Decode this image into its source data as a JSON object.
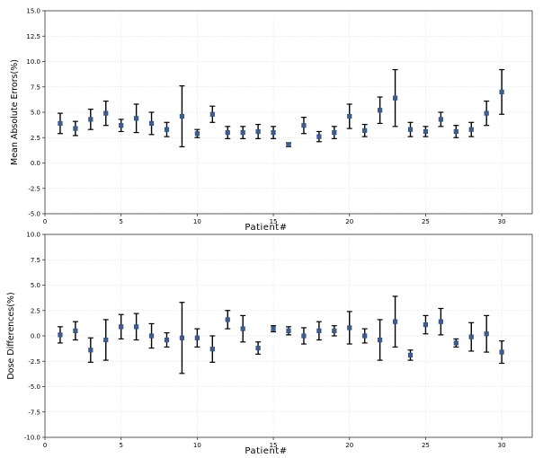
{
  "chart_data": [
    {
      "type": "scatter",
      "subtype": "errorbar",
      "xlabel": "Patient#",
      "ylabel": "Mean Absolute Errors(%)",
      "xlim": [
        0,
        32
      ],
      "ylim": [
        -5.0,
        15.0
      ],
      "xticks": [
        0,
        5,
        10,
        15,
        20,
        25,
        30
      ],
      "yticks": [
        "-5.0",
        "-2.5",
        "0.0",
        "2.5",
        "5.0",
        "7.5",
        "10.0",
        "12.5",
        "15.0"
      ],
      "grid": true,
      "marker_color": "#3a5f94",
      "errorbar_color": "#000000",
      "x": [
        1,
        2,
        3,
        4,
        5,
        6,
        7,
        8,
        9,
        10,
        11,
        12,
        13,
        14,
        15,
        16,
        17,
        18,
        19,
        20,
        21,
        22,
        23,
        24,
        25,
        26,
        27,
        28,
        29,
        30
      ],
      "y": [
        3.9,
        3.4,
        4.3,
        4.9,
        3.7,
        4.4,
        3.9,
        3.3,
        4.6,
        2.9,
        4.8,
        3.0,
        3.0,
        3.1,
        3.0,
        1.8,
        3.7,
        2.6,
        3.0,
        4.6,
        3.2,
        5.2,
        6.4,
        3.3,
        3.1,
        4.3,
        3.1,
        3.3,
        4.9,
        7.0
      ],
      "yerr": [
        1.0,
        0.7,
        1.0,
        1.2,
        0.6,
        1.4,
        1.1,
        0.7,
        3.0,
        0.4,
        0.8,
        0.6,
        0.6,
        0.7,
        0.6,
        0.2,
        0.8,
        0.5,
        0.6,
        1.2,
        0.6,
        1.3,
        2.8,
        0.7,
        0.5,
        0.7,
        0.6,
        0.7,
        1.2,
        2.2
      ]
    },
    {
      "type": "scatter",
      "subtype": "errorbar",
      "xlabel": "Patient#",
      "ylabel": "Dose Differences(%)",
      "xlim": [
        0,
        32
      ],
      "ylim": [
        -10.0,
        10.0
      ],
      "xticks": [
        0,
        5,
        10,
        15,
        20,
        25,
        30
      ],
      "yticks": [
        "-10.0",
        "-7.5",
        "-5.0",
        "-2.5",
        "0.0",
        "2.5",
        "5.0",
        "7.5",
        "10.0"
      ],
      "grid": true,
      "marker_color": "#3a5f94",
      "errorbar_color": "#000000",
      "x": [
        1,
        2,
        3,
        4,
        5,
        6,
        7,
        8,
        9,
        10,
        11,
        12,
        13,
        14,
        15,
        16,
        17,
        18,
        19,
        20,
        21,
        22,
        23,
        24,
        25,
        26,
        27,
        28,
        29,
        30
      ],
      "y": [
        0.1,
        0.5,
        -1.4,
        -0.4,
        0.9,
        0.9,
        0.0,
        -0.4,
        -0.2,
        -0.2,
        -1.3,
        1.6,
        0.7,
        -1.2,
        0.7,
        0.5,
        0.0,
        0.5,
        0.5,
        0.8,
        0.0,
        -0.4,
        1.4,
        -1.9,
        1.1,
        1.4,
        -0.7,
        -0.1,
        0.2,
        -1.6
      ],
      "yerr": [
        0.8,
        0.9,
        1.2,
        2.0,
        1.2,
        1.3,
        1.2,
        0.7,
        3.5,
        0.9,
        1.3,
        0.9,
        1.3,
        0.6,
        0.3,
        0.4,
        0.8,
        0.9,
        0.5,
        1.6,
        0.7,
        2.0,
        2.5,
        0.5,
        0.9,
        1.3,
        0.4,
        1.4,
        1.8,
        1.1
      ]
    }
  ]
}
